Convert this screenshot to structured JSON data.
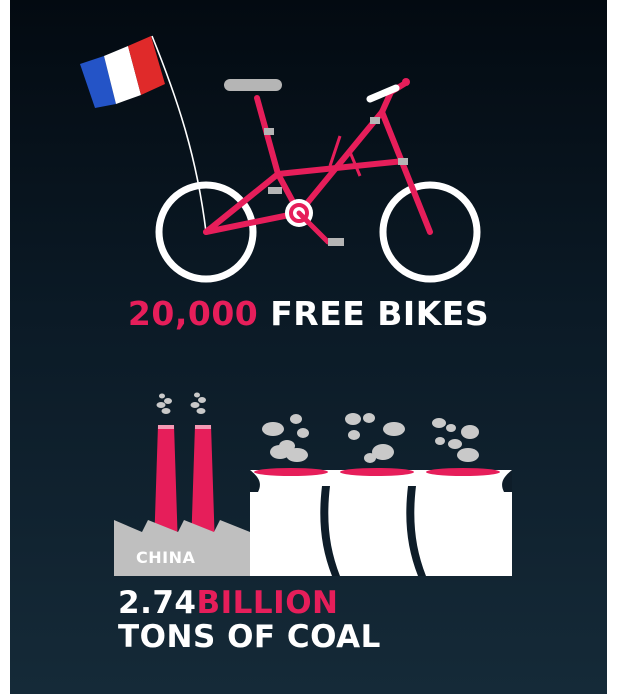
{
  "bikes": {
    "number": "20,000",
    "label": "FREE BIKES"
  },
  "factory": {
    "country": "CHINA"
  },
  "coal": {
    "number": "2.74",
    "unit": "BILLION",
    "label": "TONS OF COAL"
  },
  "colors": {
    "accent": "#e61e5a",
    "text": "#ffffff",
    "background": "#0b1a26",
    "factory_gray": "#bfbfbf"
  }
}
